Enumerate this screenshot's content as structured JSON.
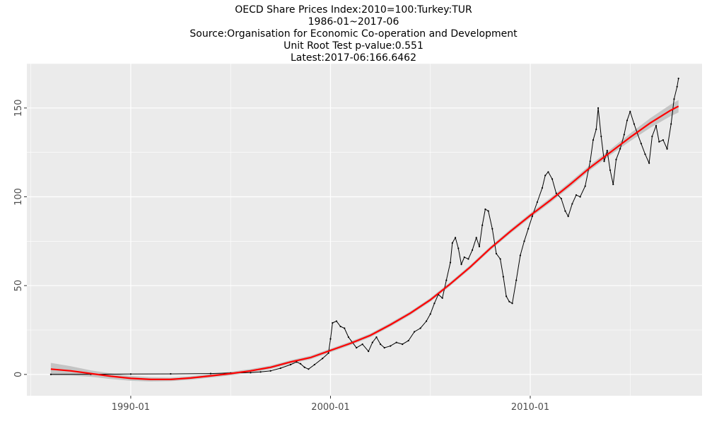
{
  "chart_data": {
    "type": "line",
    "title": "OECD Share Prices Index:2010=100:Turkey:TUR",
    "subtitle_lines": [
      "1986-01~2017-06",
      "Source:Organisation for Economic Co-operation and Development",
      "Unit Root Test p-value:0.551",
      "Latest:2017-06:166.6462"
    ],
    "xlabel": "",
    "ylabel": "",
    "x_tick_labels": [
      "1990-01",
      "2000-01",
      "2010-01"
    ],
    "x_tick_values": [
      1990.0,
      2000.0,
      2010.0
    ],
    "y_tick_labels": [
      "0",
      "50",
      "100",
      "150"
    ],
    "y_tick_values": [
      0,
      50,
      100,
      150
    ],
    "xlim": [
      1984.8,
      2018.6
    ],
    "ylim": [
      -12,
      175
    ],
    "grid": true,
    "legend": "none",
    "colors": {
      "panel": "#ebebeb",
      "grid": "#ffffff",
      "series": "#000000",
      "trend": "#ff0000",
      "band": "#bdbdbd"
    },
    "series": [
      {
        "points": [
          [
            1986.0,
            0.05
          ],
          [
            1988.0,
            0.1
          ],
          [
            1990.0,
            0.2
          ],
          [
            1992.0,
            0.3
          ],
          [
            1994.0,
            0.5
          ],
          [
            1995.0,
            0.8
          ],
          [
            1996.0,
            1.0
          ],
          [
            1996.5,
            1.4
          ],
          [
            1997.0,
            2.0
          ],
          [
            1997.5,
            3.5
          ],
          [
            1998.0,
            5.5
          ],
          [
            1998.3,
            7.0
          ],
          [
            1998.5,
            6.0
          ],
          [
            1998.7,
            4.0
          ],
          [
            1998.9,
            3.0
          ],
          [
            1999.2,
            5.5
          ],
          [
            1999.6,
            9.0
          ],
          [
            1999.9,
            12.0
          ],
          [
            2000.0,
            20.0
          ],
          [
            2000.1,
            29.0
          ],
          [
            2000.3,
            30.0
          ],
          [
            2000.5,
            27.0
          ],
          [
            2000.7,
            26.0
          ],
          [
            2000.9,
            21.0
          ],
          [
            2001.1,
            18.0
          ],
          [
            2001.3,
            15.0
          ],
          [
            2001.6,
            17.0
          ],
          [
            2001.9,
            13.0
          ],
          [
            2002.1,
            18.0
          ],
          [
            2002.3,
            21.0
          ],
          [
            2002.5,
            17.0
          ],
          [
            2002.7,
            15.0
          ],
          [
            2003.0,
            16.0
          ],
          [
            2003.3,
            18.0
          ],
          [
            2003.6,
            17.0
          ],
          [
            2003.9,
            19.0
          ],
          [
            2004.2,
            24.0
          ],
          [
            2004.5,
            26.0
          ],
          [
            2004.8,
            30.0
          ],
          [
            2005.0,
            34.0
          ],
          [
            2005.2,
            40.0
          ],
          [
            2005.4,
            45.0
          ],
          [
            2005.6,
            43.0
          ],
          [
            2005.8,
            53.0
          ],
          [
            2006.0,
            63.0
          ],
          [
            2006.1,
            74.0
          ],
          [
            2006.25,
            77.0
          ],
          [
            2006.4,
            71.0
          ],
          [
            2006.55,
            62.0
          ],
          [
            2006.7,
            66.0
          ],
          [
            2006.9,
            65.0
          ],
          [
            2007.1,
            70.0
          ],
          [
            2007.3,
            77.0
          ],
          [
            2007.45,
            72.0
          ],
          [
            2007.6,
            84.0
          ],
          [
            2007.75,
            93.0
          ],
          [
            2007.9,
            92.0
          ],
          [
            2008.1,
            82.0
          ],
          [
            2008.3,
            68.0
          ],
          [
            2008.5,
            65.0
          ],
          [
            2008.65,
            55.0
          ],
          [
            2008.8,
            44.0
          ],
          [
            2008.95,
            41.0
          ],
          [
            2009.1,
            40.0
          ],
          [
            2009.3,
            53.0
          ],
          [
            2009.5,
            67.0
          ],
          [
            2009.7,
            75.0
          ],
          [
            2009.9,
            82.0
          ],
          [
            2010.1,
            89.0
          ],
          [
            2010.35,
            97.0
          ],
          [
            2010.6,
            105.0
          ],
          [
            2010.75,
            112.0
          ],
          [
            2010.9,
            114.0
          ],
          [
            2011.1,
            110.0
          ],
          [
            2011.3,
            102.0
          ],
          [
            2011.55,
            99.0
          ],
          [
            2011.75,
            92.0
          ],
          [
            2011.9,
            89.0
          ],
          [
            2012.1,
            96.0
          ],
          [
            2012.3,
            101.0
          ],
          [
            2012.5,
            100.0
          ],
          [
            2012.75,
            106.0
          ],
          [
            2013.0,
            120.0
          ],
          [
            2013.15,
            132.0
          ],
          [
            2013.3,
            138.0
          ],
          [
            2013.4,
            150.0
          ],
          [
            2013.55,
            134.0
          ],
          [
            2013.7,
            120.0
          ],
          [
            2013.85,
            126.0
          ],
          [
            2014.0,
            115.0
          ],
          [
            2014.15,
            107.0
          ],
          [
            2014.3,
            121.0
          ],
          [
            2014.5,
            127.0
          ],
          [
            2014.7,
            135.0
          ],
          [
            2014.85,
            143.0
          ],
          [
            2015.0,
            148.0
          ],
          [
            2015.2,
            141.0
          ],
          [
            2015.35,
            136.0
          ],
          [
            2015.55,
            130.0
          ],
          [
            2015.75,
            124.0
          ],
          [
            2015.95,
            119.0
          ],
          [
            2016.1,
            134.0
          ],
          [
            2016.3,
            140.0
          ],
          [
            2016.45,
            131.0
          ],
          [
            2016.65,
            132.0
          ],
          [
            2016.85,
            127.0
          ],
          [
            2017.05,
            141.0
          ],
          [
            2017.2,
            155.0
          ],
          [
            2017.35,
            162.0
          ],
          [
            2017.42,
            166.6462
          ]
        ]
      },
      {
        "points": [
          [
            1986.0,
            3.0
          ],
          [
            1987.0,
            2.0
          ],
          [
            1988.0,
            0.5
          ],
          [
            1989.0,
            -1.0
          ],
          [
            1990.0,
            -2.2
          ],
          [
            1991.0,
            -2.8
          ],
          [
            1992.0,
            -2.8
          ],
          [
            1993.0,
            -2.0
          ],
          [
            1994.0,
            -0.8
          ],
          [
            1995.0,
            0.5
          ],
          [
            1996.0,
            2.0
          ],
          [
            1997.0,
            4.0
          ],
          [
            1998.0,
            7.0
          ],
          [
            1999.0,
            9.5
          ],
          [
            2000.0,
            13.5
          ],
          [
            2001.0,
            17.5
          ],
          [
            2002.0,
            22.0
          ],
          [
            2003.0,
            28.0
          ],
          [
            2004.0,
            34.5
          ],
          [
            2005.0,
            42.0
          ],
          [
            2006.0,
            51.0
          ],
          [
            2007.0,
            60.5
          ],
          [
            2008.0,
            71.0
          ],
          [
            2009.0,
            80.5
          ],
          [
            2010.0,
            89.5
          ],
          [
            2011.0,
            98.0
          ],
          [
            2012.0,
            107.0
          ],
          [
            2013.0,
            116.5
          ],
          [
            2014.0,
            125.0
          ],
          [
            2015.0,
            133.5
          ],
          [
            2016.0,
            141.5
          ],
          [
            2017.0,
            148.5
          ],
          [
            2017.42,
            151.0
          ]
        ]
      }
    ],
    "band_halfwidth": [
      [
        1986.0,
        3.5
      ],
      [
        1988.0,
        1.8
      ],
      [
        1992.0,
        1.0
      ],
      [
        1999.0,
        1.0
      ],
      [
        2008.0,
        1.1
      ],
      [
        2014.0,
        1.6
      ],
      [
        2017.42,
        3.5
      ]
    ]
  }
}
